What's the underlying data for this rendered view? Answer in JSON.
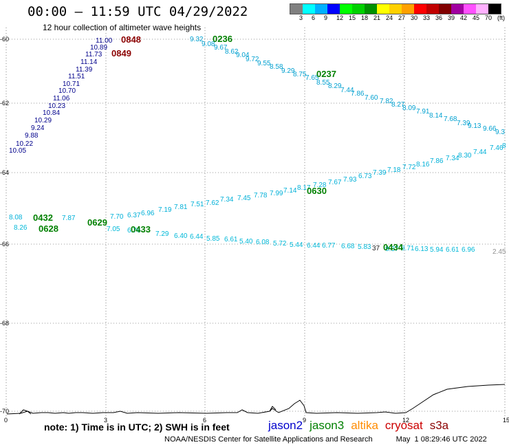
{
  "header": {
    "title": "00:00 — 11:59 UTC 04/29/2022",
    "subtitle": "12 hour collection of altimeter wave heights"
  },
  "color_legend": {
    "unit_label": "(ft)",
    "swatches": [
      "#808080",
      "#00ffff",
      "#00b0ff",
      "#0000ff",
      "#00ff00",
      "#00d000",
      "#009000",
      "#ffff00",
      "#ffd000",
      "#ffa000",
      "#ff0000",
      "#c00000",
      "#800000",
      "#a000a0",
      "#ff50ff",
      "#ffb0ff",
      "#000000"
    ],
    "ticks": [
      "3",
      "6",
      "9",
      "12",
      "15",
      "18",
      "21",
      "24",
      "27",
      "30",
      "33",
      "36",
      "39",
      "42",
      "45",
      "70"
    ]
  },
  "axes": {
    "x_ticks": [
      "0",
      "3",
      "6",
      "9",
      "12",
      "15"
    ],
    "y_ticks": [
      "-60",
      "-62",
      "-64",
      "-66",
      "-68",
      "-70"
    ]
  },
  "passes": [
    {
      "label": "0848",
      "color": "#8b0000"
    },
    {
      "label": "0849",
      "color": "#8b0000"
    },
    {
      "label": "0236",
      "color": "#008000"
    },
    {
      "label": "0237",
      "color": "#008000"
    },
    {
      "label": "0432",
      "color": "#008000"
    },
    {
      "label": "0628",
      "color": "#008000"
    },
    {
      "label": "0629",
      "color": "#008000"
    },
    {
      "label": "0433",
      "color": "#008000"
    },
    {
      "label": "0630",
      "color": "#008000"
    },
    {
      "label": "0434",
      "color": "#008000"
    }
  ],
  "tracks": {
    "jason2_dark": {
      "color": "#00008b",
      "values": [
        "11.00",
        "10.89",
        "11.73",
        "11.14",
        "11.39",
        "11.51",
        "10.71",
        "10.70",
        "11.06",
        "10.23",
        "10.84",
        "10.29",
        "9.24",
        "9.88",
        "10.22",
        "10.05"
      ]
    },
    "jason3_upper": {
      "color": "#00a0d0",
      "values": [
        "9.32",
        "9.08",
        "9.67",
        "8.62",
        "9.04",
        "9.72",
        "9.55",
        "8.58",
        "9.29",
        "8.75",
        "7.65",
        "8.55",
        "8.29",
        "7.44",
        "7.86",
        "7.60",
        "7.82",
        "8.27",
        "8.09",
        "7.91",
        "8.14",
        "7.68",
        "7.39",
        "9.13",
        "9.66",
        "9.3"
      ]
    },
    "jason3_middle": {
      "color": "#00b0d8",
      "values": [
        "8.08",
        "7.87",
        "7.70",
        "6.37",
        "6.96",
        "7.19",
        "7.81",
        "7.51",
        "7.62",
        "7.34",
        "7.45",
        "7.78",
        "7.99",
        "7.14",
        "8.17",
        "7.28",
        "7.67",
        "7.93",
        "6.73",
        "7.39",
        "7.18",
        "7.72",
        "8.16",
        "7.86",
        "7.34",
        "8.30",
        "7.44",
        "7.46",
        "8"
      ]
    },
    "jason3_lower": {
      "color": "#00b8d8",
      "values": [
        "8.26",
        "7.05",
        "6.76",
        "7.29",
        "6.40",
        "6.44",
        "5.85",
        "6.61",
        "5.40",
        "6.08",
        "5.72",
        "5.44",
        "6.44",
        "6.77",
        "6.68",
        "5.83",
        "8.37",
        "8.71",
        "6.13",
        "5.94",
        "6.61",
        "6.96"
      ]
    },
    "gray_value": "2.45",
    "brown_value": "37"
  },
  "note": "note:  1) Time is in UTC;  2) SWH is in feet",
  "satellites": [
    {
      "name": "jason2",
      "color": "#0000cc"
    },
    {
      "name": "jason3",
      "color": "#008000"
    },
    {
      "name": "altika",
      "color": "#ff8c00"
    },
    {
      "name": "cryosat",
      "color": "#cc0000"
    },
    {
      "name": "s3a",
      "color": "#8b0000"
    }
  ],
  "footer": {
    "credit": "NOAA/NESDIS Center for Satellite Applications and Research",
    "timestamp": "May  1 08:29:46 UTC 2022"
  }
}
